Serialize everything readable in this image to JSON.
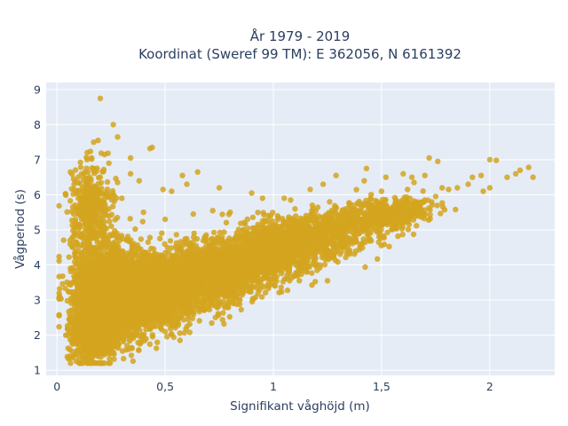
{
  "chart_data": {
    "type": "scatter",
    "title_lines": [
      "År 1979 - 2019",
      "Koordinat (Sweref 99 TM): E 362056, N 6161392"
    ],
    "xlabel": "Signifikant våghöjd (m)",
    "ylabel": "Vågperiod (s)",
    "xlim": [
      -0.05,
      2.3
    ],
    "ylim": [
      0.85,
      9.2
    ],
    "x_ticks": [
      0,
      0.5,
      1,
      1.5,
      2
    ],
    "x_tick_labels": [
      "0",
      "0,5",
      "1",
      "1,5",
      "2"
    ],
    "y_ticks": [
      1,
      2,
      3,
      4,
      5,
      6,
      7,
      8,
      9
    ],
    "y_tick_labels": [
      "1",
      "2",
      "3",
      "4",
      "5",
      "6",
      "7",
      "8",
      "9"
    ],
    "grid": true,
    "legend": "none",
    "marker_color": "#d4a41f",
    "plot_bg": "#e5ecf6",
    "series": [
      {
        "points": [
          [
            0.2,
            8.75
          ],
          [
            0.26,
            8.0
          ],
          [
            0.28,
            7.65
          ],
          [
            0.19,
            7.55
          ],
          [
            0.17,
            7.5
          ],
          [
            0.44,
            7.35
          ],
          [
            0.43,
            7.32
          ],
          [
            0.14,
            7.2
          ],
          [
            0.22,
            7.15
          ],
          [
            0.16,
            7.05
          ],
          [
            0.34,
            7.05
          ],
          [
            0.65,
            6.65
          ],
          [
            0.34,
            6.6
          ],
          [
            0.58,
            6.55
          ],
          [
            0.6,
            6.3
          ],
          [
            0.38,
            6.4
          ],
          [
            0.75,
            6.2
          ],
          [
            0.49,
            6.15
          ],
          [
            0.53,
            6.1
          ],
          [
            0.9,
            6.05
          ],
          [
            0.95,
            5.9
          ],
          [
            1.05,
            5.9
          ],
          [
            1.08,
            5.85
          ],
          [
            1.17,
            6.15
          ],
          [
            1.23,
            6.3
          ],
          [
            1.29,
            6.55
          ],
          [
            1.42,
            6.4
          ],
          [
            1.43,
            6.75
          ],
          [
            1.52,
            6.5
          ],
          [
            1.6,
            6.6
          ],
          [
            1.64,
            6.5
          ],
          [
            1.7,
            6.55
          ],
          [
            1.65,
            6.35
          ],
          [
            1.72,
            7.05
          ],
          [
            1.76,
            6.95
          ],
          [
            1.78,
            6.2
          ],
          [
            1.81,
            6.15
          ],
          [
            1.85,
            6.2
          ],
          [
            1.9,
            6.3
          ],
          [
            1.92,
            6.5
          ],
          [
            1.96,
            6.55
          ],
          [
            2.0,
            7.0
          ],
          [
            2.03,
            6.98
          ],
          [
            2.08,
            6.5
          ],
          [
            2.12,
            6.6
          ],
          [
            2.14,
            6.7
          ],
          [
            2.18,
            6.78
          ],
          [
            2.2,
            6.5
          ],
          [
            2.0,
            6.2
          ],
          [
            1.97,
            6.1
          ],
          [
            1.75,
            5.95
          ],
          [
            1.7,
            5.85
          ],
          [
            1.58,
            5.8
          ],
          [
            1.55,
            5.5
          ],
          [
            1.48,
            5.35
          ],
          [
            1.38,
            5.2
          ],
          [
            1.3,
            5.0
          ],
          [
            1.2,
            4.7
          ],
          [
            1.13,
            3.9
          ],
          [
            1.07,
            3.8
          ],
          [
            1.25,
            3.55
          ],
          [
            1.12,
            3.55
          ],
          [
            0.98,
            3.4
          ],
          [
            0.86,
            3.2
          ],
          [
            0.8,
            3.0
          ],
          [
            0.75,
            2.9
          ],
          [
            0.7,
            2.8
          ],
          [
            0.62,
            2.65
          ],
          [
            0.55,
            2.55
          ],
          [
            0.48,
            2.4
          ],
          [
            0.42,
            2.25
          ],
          [
            0.37,
            2.15
          ],
          [
            0.33,
            2.05
          ],
          [
            0.3,
            1.95
          ],
          [
            0.27,
            1.85
          ],
          [
            0.24,
            1.75
          ],
          [
            0.21,
            1.65
          ],
          [
            0.18,
            1.55
          ],
          [
            0.16,
            1.5
          ],
          [
            0.14,
            1.45
          ],
          [
            0.12,
            1.35
          ],
          [
            0.1,
            1.3
          ],
          [
            0.09,
            1.25
          ],
          [
            0.07,
            1.35
          ],
          [
            0.06,
            1.4
          ],
          [
            0.08,
            1.42
          ],
          [
            0.12,
            1.2
          ],
          [
            0.15,
            1.3
          ],
          [
            0.19,
            1.4
          ],
          [
            0.23,
            1.55
          ],
          [
            0.08,
            3.0
          ],
          [
            0.08,
            3.5
          ],
          [
            0.1,
            4.5
          ],
          [
            0.11,
            5.4
          ],
          [
            0.13,
            6.0
          ],
          [
            0.15,
            6.5
          ],
          [
            0.17,
            6.7
          ],
          [
            0.24,
            6.9
          ],
          [
            0.28,
            6.35
          ],
          [
            0.3,
            5.9
          ],
          [
            0.4,
            5.5
          ],
          [
            0.5,
            5.3
          ],
          [
            0.63,
            5.45
          ],
          [
            0.72,
            5.55
          ],
          [
            0.8,
            5.5
          ],
          [
            0.88,
            5.3
          ],
          [
            0.95,
            5.25
          ],
          [
            1.02,
            5.4
          ],
          [
            1.1,
            5.6
          ],
          [
            1.18,
            5.7
          ],
          [
            1.26,
            5.8
          ],
          [
            1.35,
            5.75
          ],
          [
            1.45,
            5.9
          ],
          [
            1.5,
            6.1
          ],
          [
            1.62,
            6.15
          ]
        ],
        "cloud": [
          {
            "center": [
              0.2,
              3.2
            ],
            "spread": [
              0.07,
              0.85
            ],
            "count": 1400
          },
          {
            "center": [
              0.3,
              3.1
            ],
            "spread": [
              0.09,
              0.6
            ],
            "count": 1300
          },
          {
            "center": [
              0.45,
              3.2
            ],
            "spread": [
              0.11,
              0.5
            ],
            "count": 1200
          },
          {
            "center": [
              0.65,
              3.6
            ],
            "spread": [
              0.12,
              0.42
            ],
            "count": 1100
          },
          {
            "center": [
              0.85,
              4.05
            ],
            "spread": [
              0.12,
              0.38
            ],
            "count": 900
          },
          {
            "center": [
              1.05,
              4.5
            ],
            "spread": [
              0.12,
              0.35
            ],
            "count": 700
          },
          {
            "center": [
              1.25,
              4.95
            ],
            "spread": [
              0.12,
              0.3
            ],
            "count": 500
          },
          {
            "center": [
              1.45,
              5.35
            ],
            "spread": [
              0.1,
              0.22
            ],
            "count": 300
          },
          {
            "center": [
              1.6,
              5.6
            ],
            "spread": [
              0.08,
              0.15
            ],
            "count": 150
          },
          {
            "center": [
              0.15,
              5.6
            ],
            "spread": [
              0.05,
              0.6
            ],
            "count": 350
          },
          {
            "center": [
              0.14,
              2.0
            ],
            "spread": [
              0.04,
              0.35
            ],
            "count": 400
          }
        ]
      }
    ]
  }
}
